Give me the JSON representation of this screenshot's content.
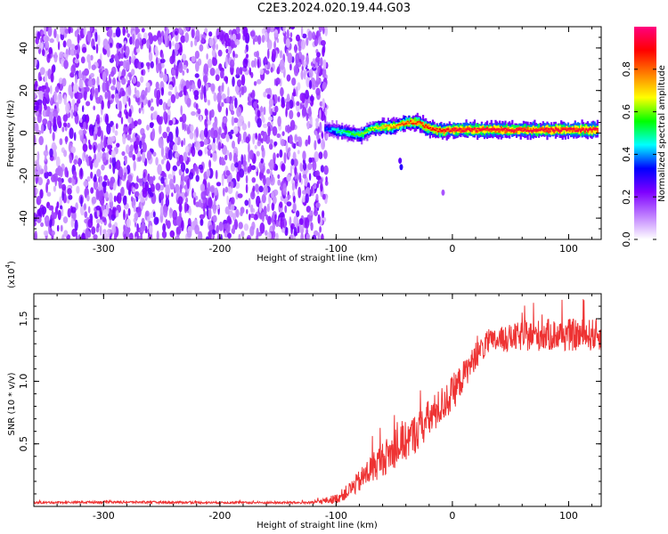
{
  "figure": {
    "title": "C2E3.2024.020.19.44.G03"
  },
  "chart_data": [
    {
      "type": "heatmap",
      "xlabel": "Height of straight line (km)",
      "ylabel": "Frequency (Hz)",
      "xlim": [
        -360,
        128
      ],
      "ylim": [
        -50,
        50
      ],
      "x_ticks": [
        {
          "value": -300,
          "label": "-300"
        },
        {
          "value": -200,
          "label": "-200"
        },
        {
          "value": -100,
          "label": "-100"
        },
        {
          "value": 0,
          "label": "0"
        },
        {
          "value": 100,
          "label": "100"
        }
      ],
      "y_ticks": [
        {
          "value": -40,
          "label": "-40"
        },
        {
          "value": -20,
          "label": "-20"
        },
        {
          "value": 0,
          "label": "0"
        },
        {
          "value": 20,
          "label": "20"
        },
        {
          "value": 40,
          "label": "40"
        }
      ],
      "noise_region_x": [
        -360,
        -108
      ],
      "noise_amplitude": 0.2,
      "signal_track": [
        {
          "x": -110,
          "freq": 2,
          "amp": 0.35
        },
        {
          "x": -100,
          "freq": 1,
          "amp": 0.5
        },
        {
          "x": -90,
          "freq": 0,
          "amp": 0.55
        },
        {
          "x": -80,
          "freq": -1,
          "amp": 0.6
        },
        {
          "x": -70,
          "freq": 2,
          "amp": 0.65
        },
        {
          "x": -60,
          "freq": 3,
          "amp": 0.75
        },
        {
          "x": -50,
          "freq": 3,
          "amp": 0.8
        },
        {
          "x": -40,
          "freq": 5,
          "amp": 0.85
        },
        {
          "x": -30,
          "freq": 5,
          "amp": 0.85
        },
        {
          "x": -20,
          "freq": 2,
          "amp": 0.9
        },
        {
          "x": -10,
          "freq": 1,
          "amp": 0.9
        },
        {
          "x": 0,
          "freq": 1.5,
          "amp": 0.95
        },
        {
          "x": 20,
          "freq": 1.5,
          "amp": 0.95
        },
        {
          "x": 40,
          "freq": 1.5,
          "amp": 0.95
        },
        {
          "x": 60,
          "freq": 1.5,
          "amp": 0.95
        },
        {
          "x": 80,
          "freq": 1.5,
          "amp": 0.95
        },
        {
          "x": 100,
          "freq": 1.5,
          "amp": 0.95
        },
        {
          "x": 125,
          "freq": 1.5,
          "amp": 0.95
        }
      ],
      "colorbar": {
        "label": "Normalized spectral amplitude",
        "range": [
          0,
          1
        ],
        "ticks": [
          {
            "value": 0.0,
            "label": "0.0"
          },
          {
            "value": 0.2,
            "label": "0.2"
          },
          {
            "value": 0.4,
            "label": "0.4"
          },
          {
            "value": 0.6,
            "label": "0.6"
          },
          {
            "value": 0.8,
            "label": "0.8"
          }
        ],
        "colors": [
          "#ffffff",
          "#bf7fff",
          "#7f00ff",
          "#0000ff",
          "#00ffff",
          "#00ff00",
          "#ffff00",
          "#ff7f00",
          "#ff0000",
          "#ff007f"
        ]
      }
    },
    {
      "type": "line",
      "xlabel": "Height of straight line (km)",
      "ylabel": "SNR (10 * v/v)",
      "y_scale_note": "(x10",
      "y_scale_exp": "4",
      "y_scale_close": ")",
      "xlim": [
        -360,
        128
      ],
      "ylim": [
        0,
        1.7
      ],
      "x_ticks": [
        {
          "value": -300,
          "label": "-300"
        },
        {
          "value": -200,
          "label": "-200"
        },
        {
          "value": -100,
          "label": "-100"
        },
        {
          "value": 0,
          "label": "0"
        },
        {
          "value": 100,
          "label": "100"
        }
      ],
      "y_ticks": [
        {
          "value": 0.5,
          "label": "0.5"
        },
        {
          "value": 1.0,
          "label": "1.0"
        },
        {
          "value": 1.5,
          "label": "1.5"
        }
      ],
      "color": "#ee3333",
      "series": [
        {
          "x": [
            -360,
            -300,
            -200,
            -120,
            -100,
            -90,
            -80,
            -70,
            -60,
            -50,
            -40,
            -30,
            -20,
            -10,
            0,
            10,
            20,
            30,
            40,
            60,
            80,
            100,
            128
          ],
          "values": [
            0.03,
            0.035,
            0.03,
            0.03,
            0.06,
            0.12,
            0.2,
            0.3,
            0.38,
            0.45,
            0.52,
            0.6,
            0.7,
            0.8,
            0.9,
            1.05,
            1.2,
            1.3,
            1.33,
            1.36,
            1.37,
            1.37,
            1.37
          ],
          "noise": [
            0.008,
            0.01,
            0.008,
            0.01,
            0.04,
            0.06,
            0.09,
            0.12,
            0.14,
            0.15,
            0.16,
            0.16,
            0.16,
            0.15,
            0.15,
            0.12,
            0.1,
            0.1,
            0.1,
            0.12,
            0.13,
            0.13,
            0.13
          ]
        }
      ]
    }
  ]
}
